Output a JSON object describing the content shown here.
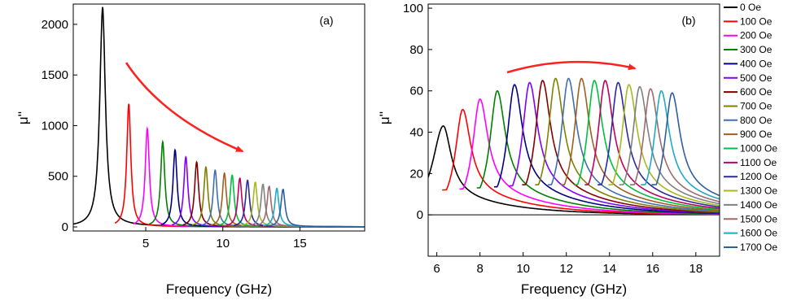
{
  "chart_data": [
    {
      "panel": "(a)",
      "type": "line",
      "xlabel": "Frequency (GHz)",
      "ylabel": "μ''",
      "xlim": [
        0.3,
        19.2
      ],
      "ylim": [
        -40,
        2200
      ],
      "xticks": [
        5,
        10,
        15
      ],
      "yticks": [
        0,
        500,
        1000,
        1500,
        2000
      ],
      "grid": false,
      "annotation": "red arrow pointing to lower right (peak height decreases with field)",
      "series": [
        {
          "name": "0 Oe",
          "color": "#000000",
          "peak_x": 2.2,
          "peak_y": 2150
        },
        {
          "name": "100 Oe",
          "color": "#ff0000",
          "peak_x": 3.9,
          "peak_y": 1210
        },
        {
          "name": "200 Oe",
          "color": "#ff00ff",
          "peak_x": 5.1,
          "peak_y": 970
        },
        {
          "name": "300 Oe",
          "color": "#008000",
          "peak_x": 6.1,
          "peak_y": 840
        },
        {
          "name": "400 Oe",
          "color": "#000080",
          "peak_x": 6.9,
          "peak_y": 760
        },
        {
          "name": "500 Oe",
          "color": "#8000ff",
          "peak_x": 7.6,
          "peak_y": 690
        },
        {
          "name": "600 Oe",
          "color": "#800000",
          "peak_x": 8.3,
          "peak_y": 640
        },
        {
          "name": "700 Oe",
          "color": "#808000",
          "peak_x": 8.9,
          "peak_y": 590
        },
        {
          "name": "800 Oe",
          "color": "#3f6fb0",
          "peak_x": 9.5,
          "peak_y": 560
        },
        {
          "name": "900 Oe",
          "color": "#a0601e",
          "peak_x": 10.1,
          "peak_y": 530
        },
        {
          "name": "1000 Oe",
          "color": "#00c040",
          "peak_x": 10.6,
          "peak_y": 510
        },
        {
          "name": "1100 Oe",
          "color": "#c00060",
          "peak_x": 11.1,
          "peak_y": 480
        },
        {
          "name": "1200 Oe",
          "color": "#2a2a9e",
          "peak_x": 11.6,
          "peak_y": 460
        },
        {
          "name": "1300 Oe",
          "color": "#a8b820",
          "peak_x": 12.1,
          "peak_y": 440
        },
        {
          "name": "1400 Oe",
          "color": "#808080",
          "peak_x": 12.6,
          "peak_y": 420
        },
        {
          "name": "1500 Oe",
          "color": "#a06a6a",
          "peak_x": 13.0,
          "peak_y": 400
        },
        {
          "name": "1600 Oe",
          "color": "#20a8c8",
          "peak_x": 13.5,
          "peak_y": 380
        },
        {
          "name": "1700 Oe",
          "color": "#2f5f9f",
          "peak_x": 13.9,
          "peak_y": 370
        }
      ]
    },
    {
      "panel": "(b)",
      "type": "line",
      "xlabel": "Frequency (GHz)",
      "ylabel": "μ''",
      "xlim": [
        5.6,
        19.1
      ],
      "ylim": [
        -20,
        102
      ],
      "xticks": [
        6,
        8,
        10,
        12,
        14,
        16,
        18
      ],
      "yticks": [
        0,
        20,
        40,
        60,
        80,
        100
      ],
      "zero_line": true,
      "grid": false,
      "legend_position": "right, outside plot",
      "annotation": "red curved arrow pointing right",
      "series": [
        {
          "name": "0 Oe",
          "color": "#000000",
          "peak_x": 6.3,
          "peak_y": 43
        },
        {
          "name": "100 Oe",
          "color": "#ff0000",
          "peak_x": 7.2,
          "peak_y": 51
        },
        {
          "name": "200 Oe",
          "color": "#ff00ff",
          "peak_x": 8.0,
          "peak_y": 56
        },
        {
          "name": "300 Oe",
          "color": "#008000",
          "peak_x": 8.8,
          "peak_y": 60
        },
        {
          "name": "400 Oe",
          "color": "#000080",
          "peak_x": 9.6,
          "peak_y": 63
        },
        {
          "name": "500 Oe",
          "color": "#8000ff",
          "peak_x": 10.3,
          "peak_y": 64
        },
        {
          "name": "600 Oe",
          "color": "#800000",
          "peak_x": 10.9,
          "peak_y": 65
        },
        {
          "name": "700 Oe",
          "color": "#808000",
          "peak_x": 11.5,
          "peak_y": 66
        },
        {
          "name": "800 Oe",
          "color": "#3f6fb0",
          "peak_x": 12.1,
          "peak_y": 66
        },
        {
          "name": "900 Oe",
          "color": "#a0601e",
          "peak_x": 12.7,
          "peak_y": 66
        },
        {
          "name": "1000 Oe",
          "color": "#00c040",
          "peak_x": 13.3,
          "peak_y": 65
        },
        {
          "name": "1100 Oe",
          "color": "#c00060",
          "peak_x": 13.8,
          "peak_y": 65
        },
        {
          "name": "1200 Oe",
          "color": "#2a2a9e",
          "peak_x": 14.4,
          "peak_y": 64
        },
        {
          "name": "1300 Oe",
          "color": "#a8b820",
          "peak_x": 14.9,
          "peak_y": 63
        },
        {
          "name": "1400 Oe",
          "color": "#808080",
          "peak_x": 15.4,
          "peak_y": 62
        },
        {
          "name": "1500 Oe",
          "color": "#a06a6a",
          "peak_x": 15.9,
          "peak_y": 61
        },
        {
          "name": "1600 Oe",
          "color": "#20a8c8",
          "peak_x": 16.4,
          "peak_y": 60
        },
        {
          "name": "1700 Oe",
          "color": "#2f5f9f",
          "peak_x": 16.9,
          "peak_y": 59
        }
      ]
    }
  ]
}
